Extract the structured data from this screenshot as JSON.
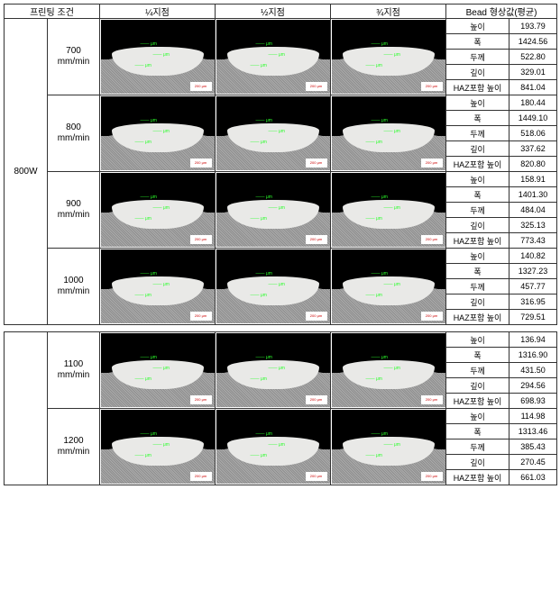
{
  "headers": {
    "cond": "프린팅 조건",
    "q1": "¼지점",
    "q2": "½지점",
    "q3": "¾지점",
    "bead": "Bead 형상값(평균)"
  },
  "measLabels": [
    "높이",
    "폭",
    "두께",
    "깊이",
    "HAZ포함 높이"
  ],
  "power": "800W",
  "sections": [
    {
      "rows": [
        {
          "speed": "700 mm/min",
          "vals": [
            "193.79",
            "1424.56",
            "522.80",
            "329.01",
            "841.04"
          ]
        },
        {
          "speed": "800 mm/min",
          "vals": [
            "180.44",
            "1449.10",
            "518.06",
            "337.62",
            "820.80"
          ]
        },
        {
          "speed": "900 mm/min",
          "vals": [
            "158.91",
            "1401.30",
            "484.04",
            "325.13",
            "773.43"
          ]
        },
        {
          "speed": "1000 mm/min",
          "vals": [
            "140.82",
            "1327.23",
            "457.77",
            "316.95",
            "729.51"
          ]
        }
      ],
      "showPower": true
    },
    {
      "rows": [
        {
          "speed": "1100 mm/min",
          "vals": [
            "136.94",
            "1316.90",
            "431.50",
            "294.56",
            "698.93"
          ]
        },
        {
          "speed": "1200 mm/min",
          "vals": [
            "114.98",
            "1313.46",
            "385.43",
            "270.45",
            "661.03"
          ]
        }
      ],
      "showPower": false
    }
  ],
  "micro": {
    "dim1": "—— μm",
    "dim2": "—— μm",
    "dim3": "—— μm",
    "scale": "200 μm"
  }
}
